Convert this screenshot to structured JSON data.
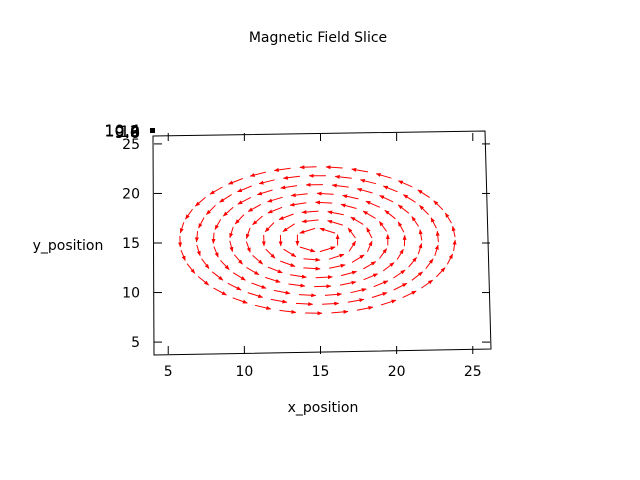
{
  "chart_data": {
    "type": "vector-field",
    "title": "Magnetic Field Slice",
    "xlabel": "x_position",
    "ylabel": "y_position",
    "xlim": [
      4,
      26
    ],
    "ylim": [
      4,
      26
    ],
    "xticks": [
      5,
      10,
      15,
      20,
      25
    ],
    "yticks": [
      5,
      10,
      15,
      20,
      25
    ],
    "xtick_labels": [
      "5",
      "10",
      "15",
      "20",
      "25"
    ],
    "ytick_labels": [
      "5",
      "10",
      "15",
      "20",
      "25"
    ],
    "z_axis_labels": [
      "10.4",
      "10.2",
      "10",
      "9.8",
      "9.6"
    ],
    "field": {
      "center": [
        14.8,
        15.3
      ],
      "radii": [
        1.2,
        2.2,
        3.2,
        4.2,
        5.2,
        6.2,
        7.2,
        8.2
      ],
      "x_scale": 1.1,
      "y_scale": 0.9,
      "rotation": "counter-clockwise",
      "arrow_length": 1.0
    },
    "arrow_color": "#ff0000",
    "grid": false,
    "legend": "none"
  }
}
